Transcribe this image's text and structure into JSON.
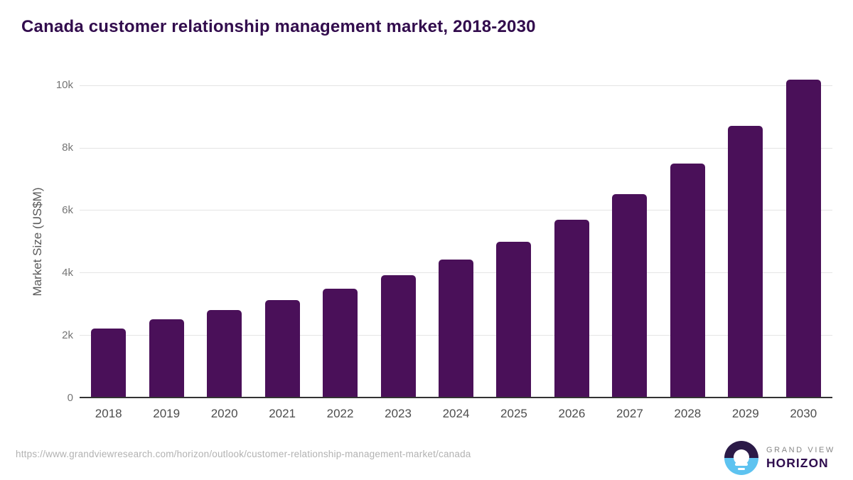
{
  "title": "Canada customer relationship management market, 2018-2030",
  "chart_data": {
    "type": "bar",
    "title": "Canada customer relationship management market, 2018-2030",
    "categories": [
      "2018",
      "2019",
      "2020",
      "2021",
      "2022",
      "2023",
      "2024",
      "2025",
      "2026",
      "2027",
      "2028",
      "2029",
      "2030"
    ],
    "values": [
      2180,
      2480,
      2770,
      3100,
      3465,
      3890,
      4385,
      4965,
      5665,
      6485,
      7470,
      8670,
      10160
    ],
    "xlabel": "",
    "ylabel": "Market Size (US$M)",
    "ylim": [
      0,
      10450
    ],
    "yticks": [
      {
        "value": 0,
        "label": "0"
      },
      {
        "value": 2000,
        "label": "2k"
      },
      {
        "value": 4000,
        "label": "4k"
      },
      {
        "value": 6000,
        "label": "6k"
      },
      {
        "value": 8000,
        "label": "8k"
      },
      {
        "value": 10000,
        "label": "10k"
      }
    ],
    "grid": true,
    "legend": false,
    "bar_color": "#4a1059"
  },
  "colors": {
    "title_text": "#320c4d",
    "bar": "#4a1059",
    "gridline": "#e4e4e4",
    "axis_line": "#333333",
    "y_tick_text": "#757575",
    "x_tick_text": "#4d4d4d",
    "axis_title_text": "#595959",
    "url_text": "#b2b2b2",
    "logo_purple": "#2b1a47",
    "logo_blue": "#5ec3f0",
    "logo_text_gray": "#878787",
    "logo_text_purple": "#2f0d4e"
  },
  "footer": {
    "source_url": "https://www.grandviewresearch.com/horizon/outlook/customer-relationship-management-market/canada",
    "logo": {
      "line1": "GRAND VIEW",
      "line2": "HORIZON"
    }
  }
}
